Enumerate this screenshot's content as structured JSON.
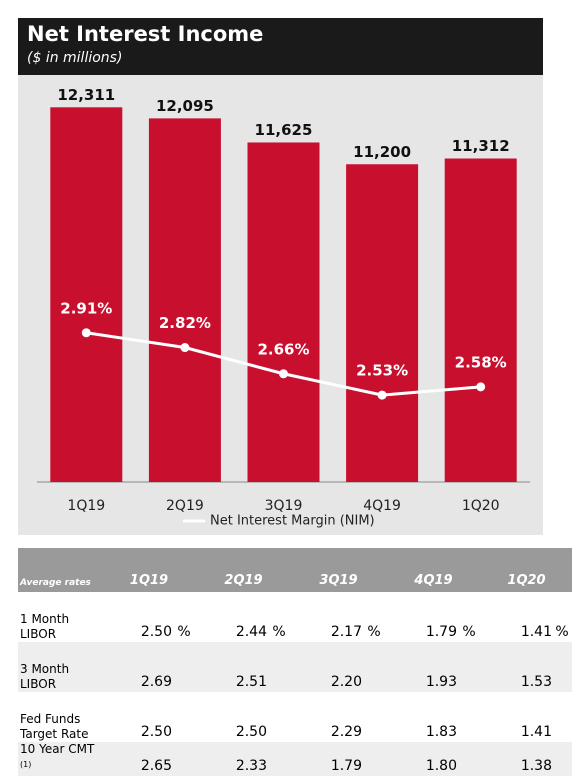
{
  "chart_data": {
    "type": "bar_line",
    "title": "Net Interest Income",
    "subtitle": "($ in millions)",
    "categories": [
      "1Q19",
      "2Q19",
      "3Q19",
      "4Q19",
      "1Q20"
    ],
    "values": [
      12311,
      12095,
      11625,
      11200,
      11312
    ],
    "value_labels": [
      "12,311",
      "12,095",
      "11,625",
      "11,200",
      "11,312"
    ],
    "color": "#c8102e",
    "ylim": [
      5000,
      13000
    ],
    "line": {
      "name": "Net Interest Margin (NIM)",
      "color": "#ffffff",
      "axis": "y2",
      "values": [
        2.91,
        2.82,
        2.66,
        2.53,
        2.58
      ],
      "value_labels": [
        "2.91%",
        "2.82%",
        "2.66%",
        "2.53%",
        "2.58%"
      ]
    },
    "y2lim": [
      2.0,
      4.5
    ]
  },
  "table": {
    "corner": "Average rates",
    "columns": [
      "1Q19",
      "2Q19",
      "3Q19",
      "4Q19",
      "1Q20"
    ],
    "unit": "%",
    "rows": [
      {
        "label": "1 Month LIBOR",
        "values": [
          "2.50",
          "2.44",
          "2.17",
          "1.79",
          "1.41"
        ]
      },
      {
        "label": "3 Month LIBOR",
        "values": [
          "2.69",
          "2.51",
          "2.20",
          "1.93",
          "1.53"
        ]
      },
      {
        "label": "Fed Funds Target Rate",
        "values": [
          "2.50",
          "2.50",
          "2.29",
          "1.83",
          "1.41"
        ]
      },
      {
        "label": "10 Year CMT",
        "note": "(1)",
        "values": [
          "2.65",
          "2.33",
          "1.79",
          "1.80",
          "1.38"
        ]
      }
    ]
  }
}
